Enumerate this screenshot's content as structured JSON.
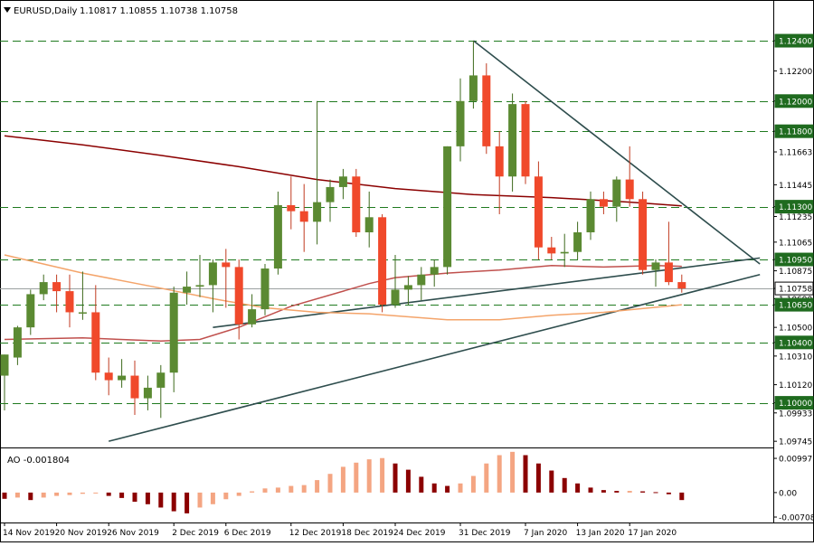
{
  "header": {
    "symbol": "EURUSD,Daily",
    "ohlc": "1.10817 1.10855 1.10738 1.10758"
  },
  "colors": {
    "bull": "#5b8a32",
    "bear": "#f0492b",
    "ma_long": "#8b0000",
    "ma_mid": "#c0504d",
    "ma_short": "#f4a46a",
    "trendline": "#2e4d4d",
    "grid_level": "#1f7a1f",
    "ao_up": "#f4a582",
    "ao_down": "#8b0000",
    "price_tag_bg": "#1f6b1f",
    "current_tag_bg": "#ffffff"
  },
  "chart_data": [
    {
      "type": "candlestick",
      "title": "EURUSD,Daily",
      "ylim": [
        1.0971,
        1.1255
      ],
      "y_ticks": [
        "1.12400",
        "1.12200",
        "1.12000",
        "1.11800",
        "1.11663",
        "1.11445",
        "1.11300",
        "1.11235",
        "1.11065",
        "1.10950",
        "1.10875",
        "1.10758",
        "1.10690",
        "1.10650",
        "1.10500",
        "1.10400",
        "1.10310",
        "1.10120",
        "1.10000",
        "1.09933",
        "1.09745"
      ],
      "horizontal_levels": [
        1.124,
        1.12,
        1.118,
        1.113,
        1.1095,
        1.1065,
        1.104,
        1.1
      ],
      "highlight_levels": [
        "1.12400",
        "1.12000",
        "1.11800",
        "1.11300",
        "1.10950",
        "1.10650",
        "1.10400",
        "1.10000"
      ],
      "current_price": "1.10758",
      "x_labels": [
        "14 Nov 2019",
        "20 Nov 2019",
        "26 Nov 2019",
        "2 Dec 2019",
        "6 Dec 2019",
        "12 Dec 2019",
        "18 Dec 2019",
        "24 Dec 2019",
        "31 Dec 2019",
        "7 Jan 2020",
        "13 Jan 2020",
        "17 Jan 2020"
      ],
      "candles": [
        {
          "o": 1.1018,
          "h": 1.1032,
          "l": 1.0995,
          "c": 1.1032
        },
        {
          "o": 1.103,
          "h": 1.1051,
          "l": 1.1025,
          "c": 1.105
        },
        {
          "o": 1.105,
          "h": 1.1075,
          "l": 1.1045,
          "c": 1.1072
        },
        {
          "o": 1.1072,
          "h": 1.1085,
          "l": 1.1068,
          "c": 1.108
        },
        {
          "o": 1.108,
          "h": 1.1085,
          "l": 1.106,
          "c": 1.1074
        },
        {
          "o": 1.1074,
          "h": 1.1085,
          "l": 1.105,
          "c": 1.106
        },
        {
          "o": 1.106,
          "h": 1.1087,
          "l": 1.1055,
          "c": 1.106
        },
        {
          "o": 1.106,
          "h": 1.1078,
          "l": 1.1015,
          "c": 1.102
        },
        {
          "o": 1.102,
          "h": 1.103,
          "l": 1.1005,
          "c": 1.1015
        },
        {
          "o": 1.1015,
          "h": 1.1029,
          "l": 1.101,
          "c": 1.1018
        },
        {
          "o": 1.1018,
          "h": 1.1028,
          "l": 1.0992,
          "c": 1.1003
        },
        {
          "o": 1.1003,
          "h": 1.1018,
          "l": 1.0995,
          "c": 1.101
        },
        {
          "o": 1.101,
          "h": 1.1025,
          "l": 1.099,
          "c": 1.102
        },
        {
          "o": 1.102,
          "h": 1.1077,
          "l": 1.1007,
          "c": 1.1073
        },
        {
          "o": 1.1073,
          "h": 1.1087,
          "l": 1.1065,
          "c": 1.1077
        },
        {
          "o": 1.1077,
          "h": 1.1098,
          "l": 1.107,
          "c": 1.1078
        },
        {
          "o": 1.1078,
          "h": 1.1095,
          "l": 1.106,
          "c": 1.1093
        },
        {
          "o": 1.1093,
          "h": 1.1102,
          "l": 1.1063,
          "c": 1.109
        },
        {
          "o": 1.109,
          "h": 1.1095,
          "l": 1.1042,
          "c": 1.1052
        },
        {
          "o": 1.1052,
          "h": 1.1072,
          "l": 1.105,
          "c": 1.1062
        },
        {
          "o": 1.1062,
          "h": 1.1092,
          "l": 1.1058,
          "c": 1.1089
        },
        {
          "o": 1.1089,
          "h": 1.114,
          "l": 1.1085,
          "c": 1.1131
        },
        {
          "o": 1.1131,
          "h": 1.115,
          "l": 1.1115,
          "c": 1.1127
        },
        {
          "o": 1.1127,
          "h": 1.1145,
          "l": 1.11,
          "c": 1.112
        },
        {
          "o": 1.112,
          "h": 1.12,
          "l": 1.1105,
          "c": 1.1133
        },
        {
          "o": 1.1133,
          "h": 1.1148,
          "l": 1.112,
          "c": 1.1143
        },
        {
          "o": 1.1143,
          "h": 1.1155,
          "l": 1.1135,
          "c": 1.115
        },
        {
          "o": 1.115,
          "h": 1.1155,
          "l": 1.111,
          "c": 1.1113
        },
        {
          "o": 1.1113,
          "h": 1.114,
          "l": 1.1103,
          "c": 1.1123
        },
        {
          "o": 1.1123,
          "h": 1.1125,
          "l": 1.106,
          "c": 1.1065
        },
        {
          "o": 1.1065,
          "h": 1.1098,
          "l": 1.1063,
          "c": 1.1075
        },
        {
          "o": 1.1075,
          "h": 1.1084,
          "l": 1.1065,
          "c": 1.1078
        },
        {
          "o": 1.1078,
          "h": 1.109,
          "l": 1.1068,
          "c": 1.1085
        },
        {
          "o": 1.1085,
          "h": 1.1095,
          "l": 1.1077,
          "c": 1.109
        },
        {
          "o": 1.109,
          "h": 1.117,
          "l": 1.1085,
          "c": 1.117
        },
        {
          "o": 1.117,
          "h": 1.1215,
          "l": 1.116,
          "c": 1.12
        },
        {
          "o": 1.12,
          "h": 1.124,
          "l": 1.1195,
          "c": 1.1217
        },
        {
          "o": 1.1217,
          "h": 1.1225,
          "l": 1.1165,
          "c": 1.117
        },
        {
          "o": 1.117,
          "h": 1.118,
          "l": 1.1125,
          "c": 1.115
        },
        {
          "o": 1.115,
          "h": 1.1205,
          "l": 1.114,
          "c": 1.1198
        },
        {
          "o": 1.1198,
          "h": 1.12,
          "l": 1.1145,
          "c": 1.115
        },
        {
          "o": 1.115,
          "h": 1.116,
          "l": 1.1095,
          "c": 1.1103
        },
        {
          "o": 1.1103,
          "h": 1.111,
          "l": 1.1095,
          "c": 1.1099
        },
        {
          "o": 1.1099,
          "h": 1.1112,
          "l": 1.109,
          "c": 1.11
        },
        {
          "o": 1.11,
          "h": 1.112,
          "l": 1.1095,
          "c": 1.1113
        },
        {
          "o": 1.1113,
          "h": 1.114,
          "l": 1.1108,
          "c": 1.1135
        },
        {
          "o": 1.1135,
          "h": 1.114,
          "l": 1.1125,
          "c": 1.113
        },
        {
          "o": 1.113,
          "h": 1.115,
          "l": 1.112,
          "c": 1.1148
        },
        {
          "o": 1.1148,
          "h": 1.117,
          "l": 1.113,
          "c": 1.1135
        },
        {
          "o": 1.1135,
          "h": 1.114,
          "l": 1.1085,
          "c": 1.1088
        },
        {
          "o": 1.1088,
          "h": 1.1095,
          "l": 1.1077,
          "c": 1.1093
        },
        {
          "o": 1.1093,
          "h": 1.112,
          "l": 1.1078,
          "c": 1.108
        },
        {
          "o": 1.108,
          "h": 1.1085,
          "l": 1.1073,
          "c": 1.10758
        }
      ],
      "moving_averages": [
        {
          "role": "ma_long",
          "points": [
            [
              0,
              1.1177
            ],
            [
              6,
              1.1171
            ],
            [
              12,
              1.1164
            ],
            [
              18,
              1.11565
            ],
            [
              24,
              1.1148
            ],
            [
              30,
              1.1142
            ],
            [
              36,
              1.1138
            ],
            [
              42,
              1.1136
            ],
            [
              48,
              1.1133
            ],
            [
              52,
              1.11305
            ]
          ]
        },
        {
          "role": "ma_mid",
          "points": [
            [
              0,
              1.1042
            ],
            [
              6,
              1.1043
            ],
            [
              12,
              1.1041
            ],
            [
              15,
              1.1042
            ],
            [
              18,
              1.105
            ],
            [
              22,
              1.1064
            ],
            [
              26,
              1.1074
            ],
            [
              28,
              1.1079
            ],
            [
              30,
              1.1083
            ],
            [
              34,
              1.1086
            ],
            [
              38,
              1.1088
            ],
            [
              42,
              1.1091
            ],
            [
              46,
              1.109
            ],
            [
              50,
              1.1091
            ],
            [
              52,
              1.10905
            ]
          ]
        },
        {
          "role": "ma_short",
          "points": [
            [
              0,
              1.1098
            ],
            [
              6,
              1.1086
            ],
            [
              12,
              1.1076
            ],
            [
              16,
              1.1069
            ],
            [
              20,
              1.1063
            ],
            [
              24,
              1.106
            ],
            [
              28,
              1.1059
            ],
            [
              34,
              1.1055
            ],
            [
              38,
              1.1055
            ],
            [
              42,
              1.1058
            ],
            [
              46,
              1.106
            ],
            [
              52,
              1.1065
            ]
          ]
        }
      ],
      "trendlines": [
        {
          "from": [
            36,
            1.124
          ],
          "to": [
            58,
            1.1092
          ]
        },
        {
          "from": [
            16,
            1.105
          ],
          "to": [
            58,
            1.1096
          ]
        },
        {
          "from": [
            8,
            1.09745
          ],
          "to": [
            58,
            1.1085
          ]
        }
      ]
    },
    {
      "type": "bar",
      "title": "AO -0.001804",
      "y_ticks": [
        "0.009971",
        "0.00",
        "-0.007087"
      ],
      "ylim": [
        -0.0072,
        0.0102
      ],
      "values": [
        -0.0015,
        -0.0012,
        -0.0018,
        -0.0012,
        -0.0008,
        -0.0006,
        -0.0003,
        -0.0002,
        -0.0008,
        -0.0013,
        -0.0022,
        -0.0028,
        -0.0036,
        -0.0045,
        -0.005,
        -0.0036,
        -0.0028,
        -0.0016,
        -0.0008,
        0.0003,
        0.001,
        0.0012,
        0.0016,
        0.0018,
        0.003,
        0.0045,
        0.0062,
        0.0072,
        0.008,
        0.0083,
        0.007,
        0.0055,
        0.0038,
        0.0022,
        0.0016,
        0.0022,
        0.004,
        0.007,
        0.009,
        0.0098,
        0.009,
        0.007,
        0.0053,
        0.0035,
        0.0022,
        0.0012,
        0.0006,
        0.0004,
        0.0004,
        0.0003,
        0.0001,
        -0.0004,
        -0.0018
      ],
      "colors": [
        "ao_down",
        "ao_up",
        "ao_down",
        "ao_up",
        "ao_up",
        "ao_up",
        "ao_up",
        "ao_up",
        "ao_down",
        "ao_down",
        "ao_down",
        "ao_down",
        "ao_down",
        "ao_down",
        "ao_down",
        "ao_up",
        "ao_up",
        "ao_up",
        "ao_up",
        "ao_up",
        "ao_up",
        "ao_up",
        "ao_up",
        "ao_up",
        "ao_up",
        "ao_up",
        "ao_up",
        "ao_up",
        "ao_up",
        "ao_up",
        "ao_down",
        "ao_down",
        "ao_down",
        "ao_down",
        "ao_down",
        "ao_up",
        "ao_up",
        "ao_up",
        "ao_up",
        "ao_up",
        "ao_down",
        "ao_down",
        "ao_down",
        "ao_down",
        "ao_down",
        "ao_down",
        "ao_down",
        "ao_down",
        "ao_up",
        "ao_down",
        "ao_down",
        "ao_down",
        "ao_down"
      ]
    }
  ]
}
